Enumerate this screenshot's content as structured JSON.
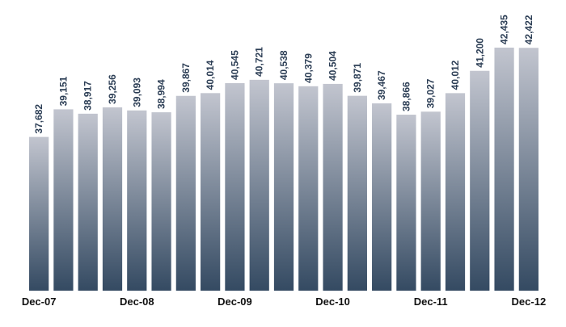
{
  "chart_data": {
    "type": "bar",
    "categories": [
      "Dec-07",
      "",
      "",
      "",
      "Dec-08",
      "",
      "",
      "",
      "Dec-09",
      "",
      "",
      "",
      "Dec-10",
      "",
      "",
      "",
      "Dec-11",
      "",
      "",
      "",
      "Dec-12"
    ],
    "series": [
      {
        "values": [
          37682,
          39151,
          38917,
          39256,
          39093,
          38994,
          39867,
          40014,
          40545,
          40721,
          40538,
          40379,
          40504,
          39871,
          39467,
          38866,
          39027,
          40012,
          41200,
          42435,
          42422
        ],
        "labels": [
          "37,682",
          "39,151",
          "38,917",
          "39,256",
          "39,093",
          "38,994",
          "39,867",
          "40,014",
          "40,545",
          "40,721",
          "40,538",
          "40,379",
          "40,504",
          "39,871",
          "39,467",
          "38,866",
          "39,027",
          "40,012",
          "41,200",
          "42,435",
          "42,422"
        ]
      }
    ],
    "ylim": [
      29500,
      43250
    ],
    "grid": false,
    "colors": {
      "bar_top": "#c2c5cf",
      "bar_bottom": "#344a62",
      "label": "#2c3e55"
    }
  }
}
